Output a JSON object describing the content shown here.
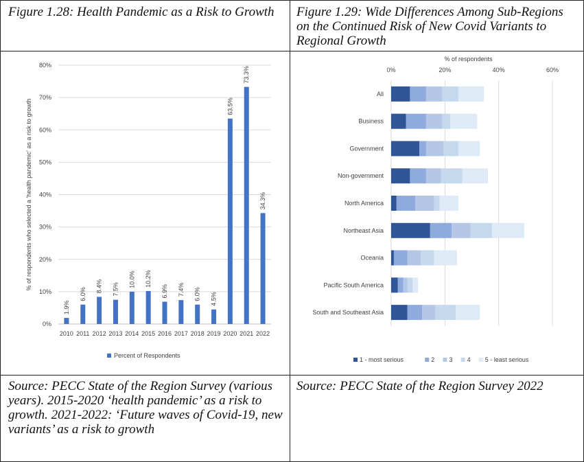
{
  "figures": [
    {
      "title": "Figure 1.28: Health Pandemic as a Risk to Growth",
      "source": "Source: PECC State of the Region Survey (various years). 2015-2020 ‘health pandemic’ as a risk to growth. 2021-2022: ‘Future waves of Covid-19, new variants’ as a risk to growth"
    },
    {
      "title": "Figure 1.29: Wide Differences Among Sub-Regions on the Continued Risk of New Covid Variants to Regional Growth",
      "source": "Source: PECC State of the Region Survey 2022"
    }
  ],
  "chart_data": [
    {
      "type": "bar",
      "categories": [
        "2010",
        "2011",
        "2012",
        "2013",
        "2014",
        "2015",
        "2016",
        "2017",
        "2018",
        "2019",
        "2020",
        "2021",
        "2022"
      ],
      "values": [
        1.9,
        6.0,
        8.4,
        7.5,
        10.0,
        10.2,
        6.9,
        7.4,
        6.0,
        4.5,
        63.5,
        73.3,
        34.3
      ],
      "value_labels": [
        "1.9%",
        "6.0%",
        "8.4%",
        "7.5%",
        "10.0%",
        "10.2%",
        "6.9%",
        "7.4%",
        "6.0%",
        "4.5%",
        "63.5%",
        "73.3%",
        "34.3%"
      ],
      "ylabel": "% of respondents who selected a 'health pandemic' as a risk to growth",
      "ylim": [
        0,
        80
      ],
      "yticks": [
        "0%",
        "10%",
        "20%",
        "30%",
        "40%",
        "50%",
        "60%",
        "70%",
        "80%"
      ],
      "grid": true,
      "legend": "bottom",
      "series": [
        {
          "name": "Percent of Respondents",
          "color": "#4472C4"
        }
      ]
    },
    {
      "type": "bar",
      "orientation": "horizontal",
      "stacked": true,
      "xlabel": "% of respondents",
      "axis_position": "top",
      "xlim": [
        0,
        60
      ],
      "xticks": [
        "0%",
        "20%",
        "40%",
        "60%"
      ],
      "grid": true,
      "legend": "bottom",
      "categories": [
        "All",
        "Business",
        "Government",
        "Non-government",
        "North America",
        "Northeast Asia",
        "Oceania",
        "Pacific South America",
        "South and Southeast Asia"
      ],
      "series": [
        {
          "name": "1 - most serious",
          "color": "#2F5597",
          "values": [
            7,
            5.5,
            10.5,
            7,
            2,
            14.5,
            1,
            2.5,
            6
          ]
        },
        {
          "name": "2",
          "color": "#8FAADC",
          "values": [
            6,
            7.5,
            2.5,
            6,
            7,
            8,
            5,
            2,
            5.5
          ]
        },
        {
          "name": "3",
          "color": "#B4C7E7",
          "values": [
            6,
            6,
            6.5,
            5.5,
            7,
            7,
            5,
            1.5,
            5
          ]
        },
        {
          "name": "4",
          "color": "#C5D9EE",
          "values": [
            6,
            3,
            5.5,
            8,
            2,
            8,
            5,
            2,
            7.5
          ]
        },
        {
          "name": "5 - least serious",
          "color": "#DEEBF7",
          "values": [
            9.5,
            10,
            8,
            9.5,
            7,
            12,
            8.5,
            2,
            9
          ]
        }
      ]
    }
  ]
}
